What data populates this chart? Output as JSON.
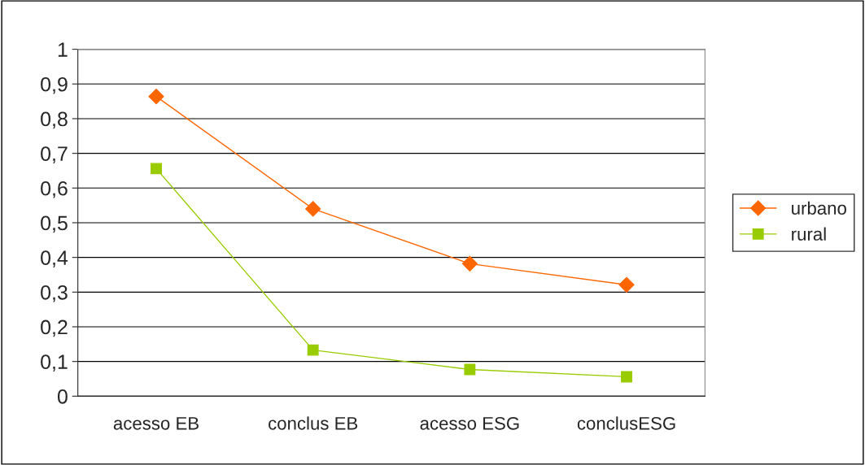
{
  "chart_data": {
    "type": "line",
    "categories": [
      "acesso EB",
      "conclus EB",
      "acesso ESG",
      "conclusESG"
    ],
    "series": [
      {
        "name": "urbano",
        "color": "#ff6600",
        "marker": "diamond",
        "values": [
          0.864,
          0.54,
          0.382,
          0.321
        ]
      },
      {
        "name": "rural",
        "color": "#99cc00",
        "marker": "square",
        "values": [
          0.656,
          0.133,
          0.077,
          0.056
        ]
      }
    ],
    "ylim": [
      0,
      1
    ],
    "yticks": [
      0,
      {
        "value": 0.1,
        "label": "0,1"
      },
      {
        "value": 0.2,
        "label": "0,2"
      },
      {
        "value": 0.3,
        "label": "0,3"
      },
      {
        "value": 0.4,
        "label": "0,4"
      },
      {
        "value": 0.5,
        "label": "0,5"
      },
      {
        "value": 0.6,
        "label": "0,6"
      },
      {
        "value": 0.7,
        "label": "0,7"
      },
      {
        "value": 0.8,
        "label": "0,8"
      },
      {
        "value": 0.9,
        "label": "0,9"
      },
      1
    ],
    "grid": "y",
    "legend": "right",
    "line_style": "solid"
  }
}
